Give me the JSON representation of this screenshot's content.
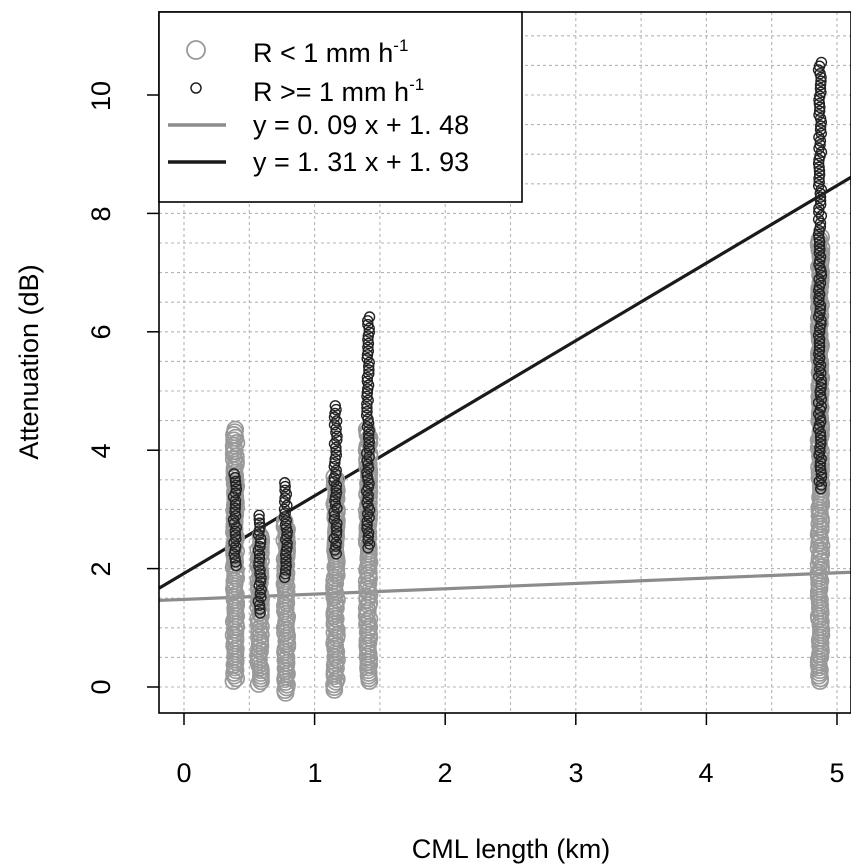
{
  "chart_data": {
    "type": "scatter",
    "title": "",
    "xlabel": "CML length (km)",
    "ylabel": "Attenuation (dB)",
    "xlim": [
      -0.2,
      5.1
    ],
    "ylim": [
      -0.42,
      11.4
    ],
    "x_ticks": [
      "0",
      "1",
      "2",
      "3",
      "4",
      "5"
    ],
    "y_ticks": [
      "0",
      "2",
      "4",
      "6",
      "8",
      "10"
    ],
    "grid": "dotted, every 0.5 units",
    "legend_position": "top-left",
    "legend": [
      {
        "label": "R < 1 mm h",
        "superscript": "-1",
        "kind": "marker-large",
        "color": "#999999"
      },
      {
        "label": "R >= 1 mm h",
        "superscript": "-1",
        "kind": "marker-small",
        "color": "#222222"
      },
      {
        "label": "y = 0. 09 x + 1. 48",
        "kind": "line",
        "color": "#8c8c8c"
      },
      {
        "label": "y = 1. 31 x + 1. 93",
        "kind": "line",
        "color": "#1a1a1a"
      }
    ],
    "series": [
      {
        "name": "R < 1 mm h-1",
        "color": "#999999",
        "clusters": [
          {
            "x": 0.39,
            "y_range": [
              0.1,
              4.35
            ]
          },
          {
            "x": 0.58,
            "y_range": [
              0.05,
              2.55
            ]
          },
          {
            "x": 0.78,
            "y_range": [
              -0.1,
              2.8
            ]
          },
          {
            "x": 1.16,
            "y_range": [
              -0.05,
              3.55
            ]
          },
          {
            "x": 1.41,
            "y_range": [
              0.1,
              4.35
            ]
          },
          {
            "x": 4.87,
            "y_range": [
              0.1,
              7.6
            ]
          }
        ]
      },
      {
        "name": "R >= 1 mm h-1",
        "color": "#222222",
        "clusters": [
          {
            "x": 0.39,
            "y_range": [
              2.05,
              3.6
            ]
          },
          {
            "x": 0.58,
            "y_range": [
              1.25,
              2.9
            ]
          },
          {
            "x": 0.78,
            "y_range": [
              1.85,
              3.45
            ]
          },
          {
            "x": 1.16,
            "y_range": [
              2.25,
              4.75
            ]
          },
          {
            "x": 1.41,
            "y_range": [
              2.35,
              6.25
            ]
          },
          {
            "x": 4.87,
            "y_range": [
              3.35,
              10.55
            ]
          }
        ]
      }
    ],
    "fit_lines": [
      {
        "name": "y = 0. 09 x + 1. 48",
        "slope": 0.09,
        "intercept": 1.48,
        "color": "#8c8c8c"
      },
      {
        "name": "y = 1. 31 x + 1. 93",
        "slope": 1.31,
        "intercept": 1.93,
        "color": "#1a1a1a"
      }
    ]
  }
}
